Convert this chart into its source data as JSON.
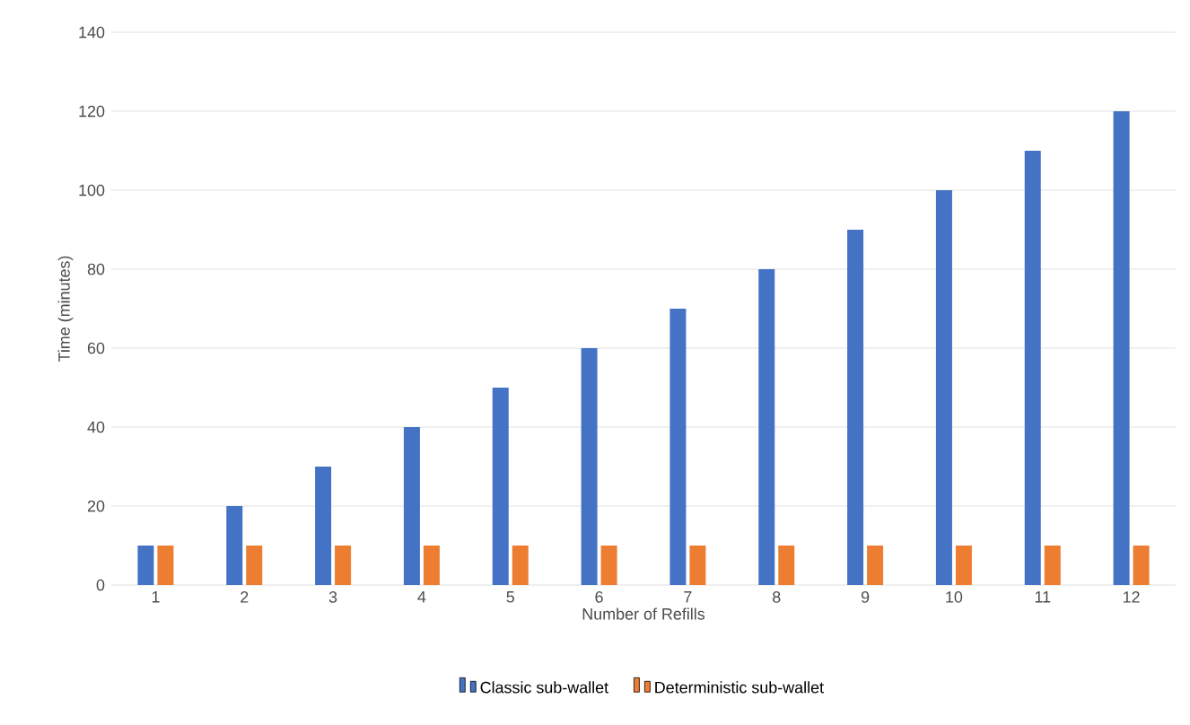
{
  "chart_data": {
    "type": "bar",
    "xlabel": "Number of Refills",
    "ylabel": "Time (minutes)",
    "categories": [
      "1",
      "2",
      "3",
      "4",
      "5",
      "6",
      "7",
      "8",
      "9",
      "10",
      "11",
      "12"
    ],
    "series": [
      {
        "name": "Classic sub-wallet",
        "color": "#4472c4",
        "values": [
          10,
          20,
          30,
          40,
          50,
          60,
          70,
          80,
          90,
          100,
          110,
          120
        ]
      },
      {
        "name": "Deterministic sub-wallet",
        "color": "#ed7d31",
        "values": [
          10,
          10,
          10,
          10,
          10,
          10,
          10,
          10,
          10,
          10,
          10,
          10
        ]
      }
    ],
    "ylim": [
      0,
      140
    ],
    "yticks": [
      0,
      20,
      40,
      60,
      80,
      100,
      120,
      140
    ],
    "grid": "y",
    "legend": "bottom"
  }
}
